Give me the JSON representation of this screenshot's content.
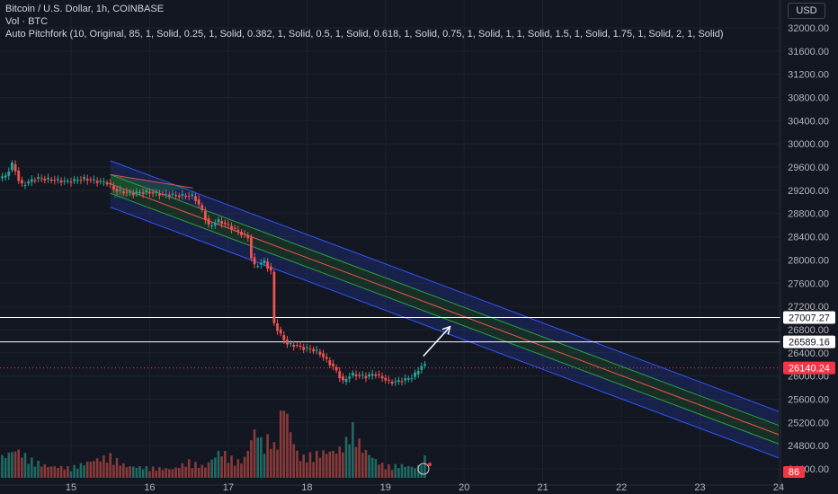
{
  "header": {
    "title": "Bitcoin / U.S. Dollar, 1h, COINBASE",
    "volume_label": "Vol · BTC",
    "indicator": "Auto Pitchfork (10, Original, 85, 1, Solid, 0.25, 1, Solid, 0.382, 1, Solid, 0.5, 1, Solid, 0.618, 1, Solid, 0.75, 1, Solid, 1, 1, Solid, 1.5, 1, Solid, 1.75, 1, Solid, 2, 1, Solid)",
    "currency": "USD"
  },
  "colors": {
    "background": "#131722",
    "up": "#26a69a",
    "down": "#ef5350",
    "up_volume": "#1f6b63",
    "down_volume": "#8b3a3a",
    "pitchfork_outer": "#3355ff",
    "pitchfork_inner": "#2ea043",
    "pitchfork_median": "#ef5350",
    "level_line": "#ffffff",
    "price_badge": "#f23645"
  },
  "chart_data": {
    "type": "candlestick",
    "title": "Bitcoin / U.S. Dollar, 1h, COINBASE",
    "ylim": [
      24200,
      32300
    ],
    "y_ticks": [
      "32000.00",
      "31600.00",
      "31200.00",
      "30800.00",
      "30400.00",
      "30000.00",
      "29600.00",
      "29200.00",
      "28800.00",
      "28400.00",
      "28000.00",
      "27600.00",
      "27200.00",
      "26800.00",
      "26400.00",
      "26000.00",
      "25600.00",
      "25200.00",
      "24800.00",
      "24400.00"
    ],
    "x_ticks": [
      "15",
      "16",
      "17",
      "18",
      "19",
      "20",
      "21",
      "22",
      "23",
      "24"
    ],
    "price_path": [
      [
        14.0,
        29380
      ],
      [
        14.2,
        29430
      ],
      [
        14.3,
        29670
      ],
      [
        14.4,
        29280
      ],
      [
        14.6,
        29410
      ],
      [
        14.8,
        29380
      ],
      [
        15.0,
        29350
      ],
      [
        15.2,
        29400
      ],
      [
        15.35,
        29360
      ],
      [
        15.5,
        29330
      ],
      [
        15.6,
        29200
      ],
      [
        15.8,
        29150
      ],
      [
        16.0,
        29170
      ],
      [
        16.2,
        29130
      ],
      [
        16.4,
        29110
      ],
      [
        16.6,
        29100
      ],
      [
        16.7,
        28870
      ],
      [
        16.8,
        28560
      ],
      [
        16.9,
        28680
      ],
      [
        17.0,
        28620
      ],
      [
        17.1,
        28540
      ],
      [
        17.3,
        28380
      ],
      [
        17.35,
        27880
      ],
      [
        17.5,
        27970
      ],
      [
        17.6,
        27760
      ],
      [
        17.62,
        26920
      ],
      [
        17.7,
        26720
      ],
      [
        17.8,
        26540
      ],
      [
        17.9,
        26530
      ],
      [
        18.0,
        26480
      ],
      [
        18.1,
        26460
      ],
      [
        18.2,
        26400
      ],
      [
        18.3,
        26260
      ],
      [
        18.4,
        26120
      ],
      [
        18.5,
        25900
      ],
      [
        18.6,
        26030
      ],
      [
        18.7,
        26010
      ],
      [
        18.8,
        25990
      ],
      [
        18.9,
        26040
      ],
      [
        19.0,
        25970
      ],
      [
        19.1,
        25890
      ],
      [
        19.2,
        25910
      ],
      [
        19.3,
        25940
      ],
      [
        19.4,
        26000
      ],
      [
        19.5,
        26180
      ]
    ],
    "volume_path": [
      [
        14.0,
        84
      ],
      [
        14.3,
        156
      ],
      [
        14.5,
        98
      ],
      [
        14.7,
        64
      ],
      [
        15.0,
        56
      ],
      [
        15.3,
        98
      ],
      [
        15.5,
        120
      ],
      [
        15.7,
        64
      ],
      [
        16.0,
        56
      ],
      [
        16.3,
        48
      ],
      [
        16.5,
        90
      ],
      [
        16.7,
        60
      ],
      [
        16.9,
        150
      ],
      [
        17.0,
        120
      ],
      [
        17.1,
        90
      ],
      [
        17.2,
        98
      ],
      [
        17.35,
        280
      ],
      [
        17.45,
        165
      ],
      [
        17.55,
        260
      ],
      [
        17.6,
        130
      ],
      [
        17.7,
        440
      ],
      [
        17.8,
        240
      ],
      [
        17.9,
        108
      ],
      [
        18.0,
        120
      ],
      [
        18.2,
        140
      ],
      [
        18.4,
        150
      ],
      [
        18.5,
        200
      ],
      [
        18.55,
        300
      ],
      [
        18.7,
        165
      ],
      [
        18.9,
        90
      ],
      [
        19.0,
        64
      ],
      [
        19.2,
        70
      ],
      [
        19.4,
        56
      ],
      [
        19.5,
        110
      ]
    ],
    "pitchfork": {
      "median_start": [
        15.5,
        29310
      ],
      "median_end": [
        24.0,
        24990
      ],
      "outer_halfwidth": 400,
      "inner_halfwidth": 160,
      "apex": [
        16.55,
        29240
      ]
    },
    "levels": [
      {
        "price": 27007.27,
        "label": "27007.27"
      },
      {
        "price": 26589.16,
        "label": "26589.16"
      }
    ],
    "last_price": {
      "price": 26140.24,
      "label": "26140.24"
    },
    "volume_badge": "86",
    "arrow": {
      "from": [
        19.48,
        26340
      ],
      "to": [
        19.82,
        26850
      ]
    }
  }
}
